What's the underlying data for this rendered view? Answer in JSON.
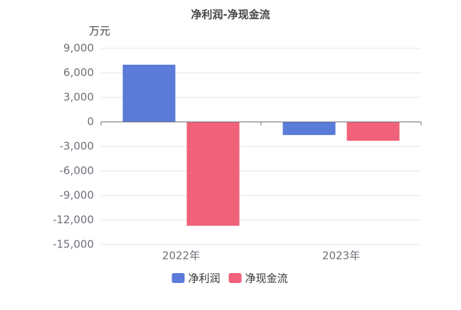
{
  "chart_data": {
    "type": "bar",
    "title": "净利润-净现金流",
    "y_unit": "万元",
    "categories": [
      "2022年",
      "2023年"
    ],
    "series": [
      {
        "name": "净利润",
        "color": "#5b7bd8",
        "values": [
          7000,
          -1600
        ]
      },
      {
        "name": "净现金流",
        "color": "#f0617a",
        "values": [
          -12700,
          -2300
        ]
      }
    ],
    "ylim": [
      -15000,
      9000
    ],
    "yticks": [
      {
        "value": -15000,
        "label": "-15,000"
      },
      {
        "value": -12000,
        "label": "-12,000"
      },
      {
        "value": -9000,
        "label": "-9,000"
      },
      {
        "value": -6000,
        "label": "-6,000"
      },
      {
        "value": -3000,
        "label": "-3,000"
      },
      0,
      {
        "value": 3000,
        "label": "3,000"
      },
      {
        "value": 6000,
        "label": "6,000"
      },
      {
        "value": 9000,
        "label": "9,000"
      }
    ],
    "grid": true
  }
}
